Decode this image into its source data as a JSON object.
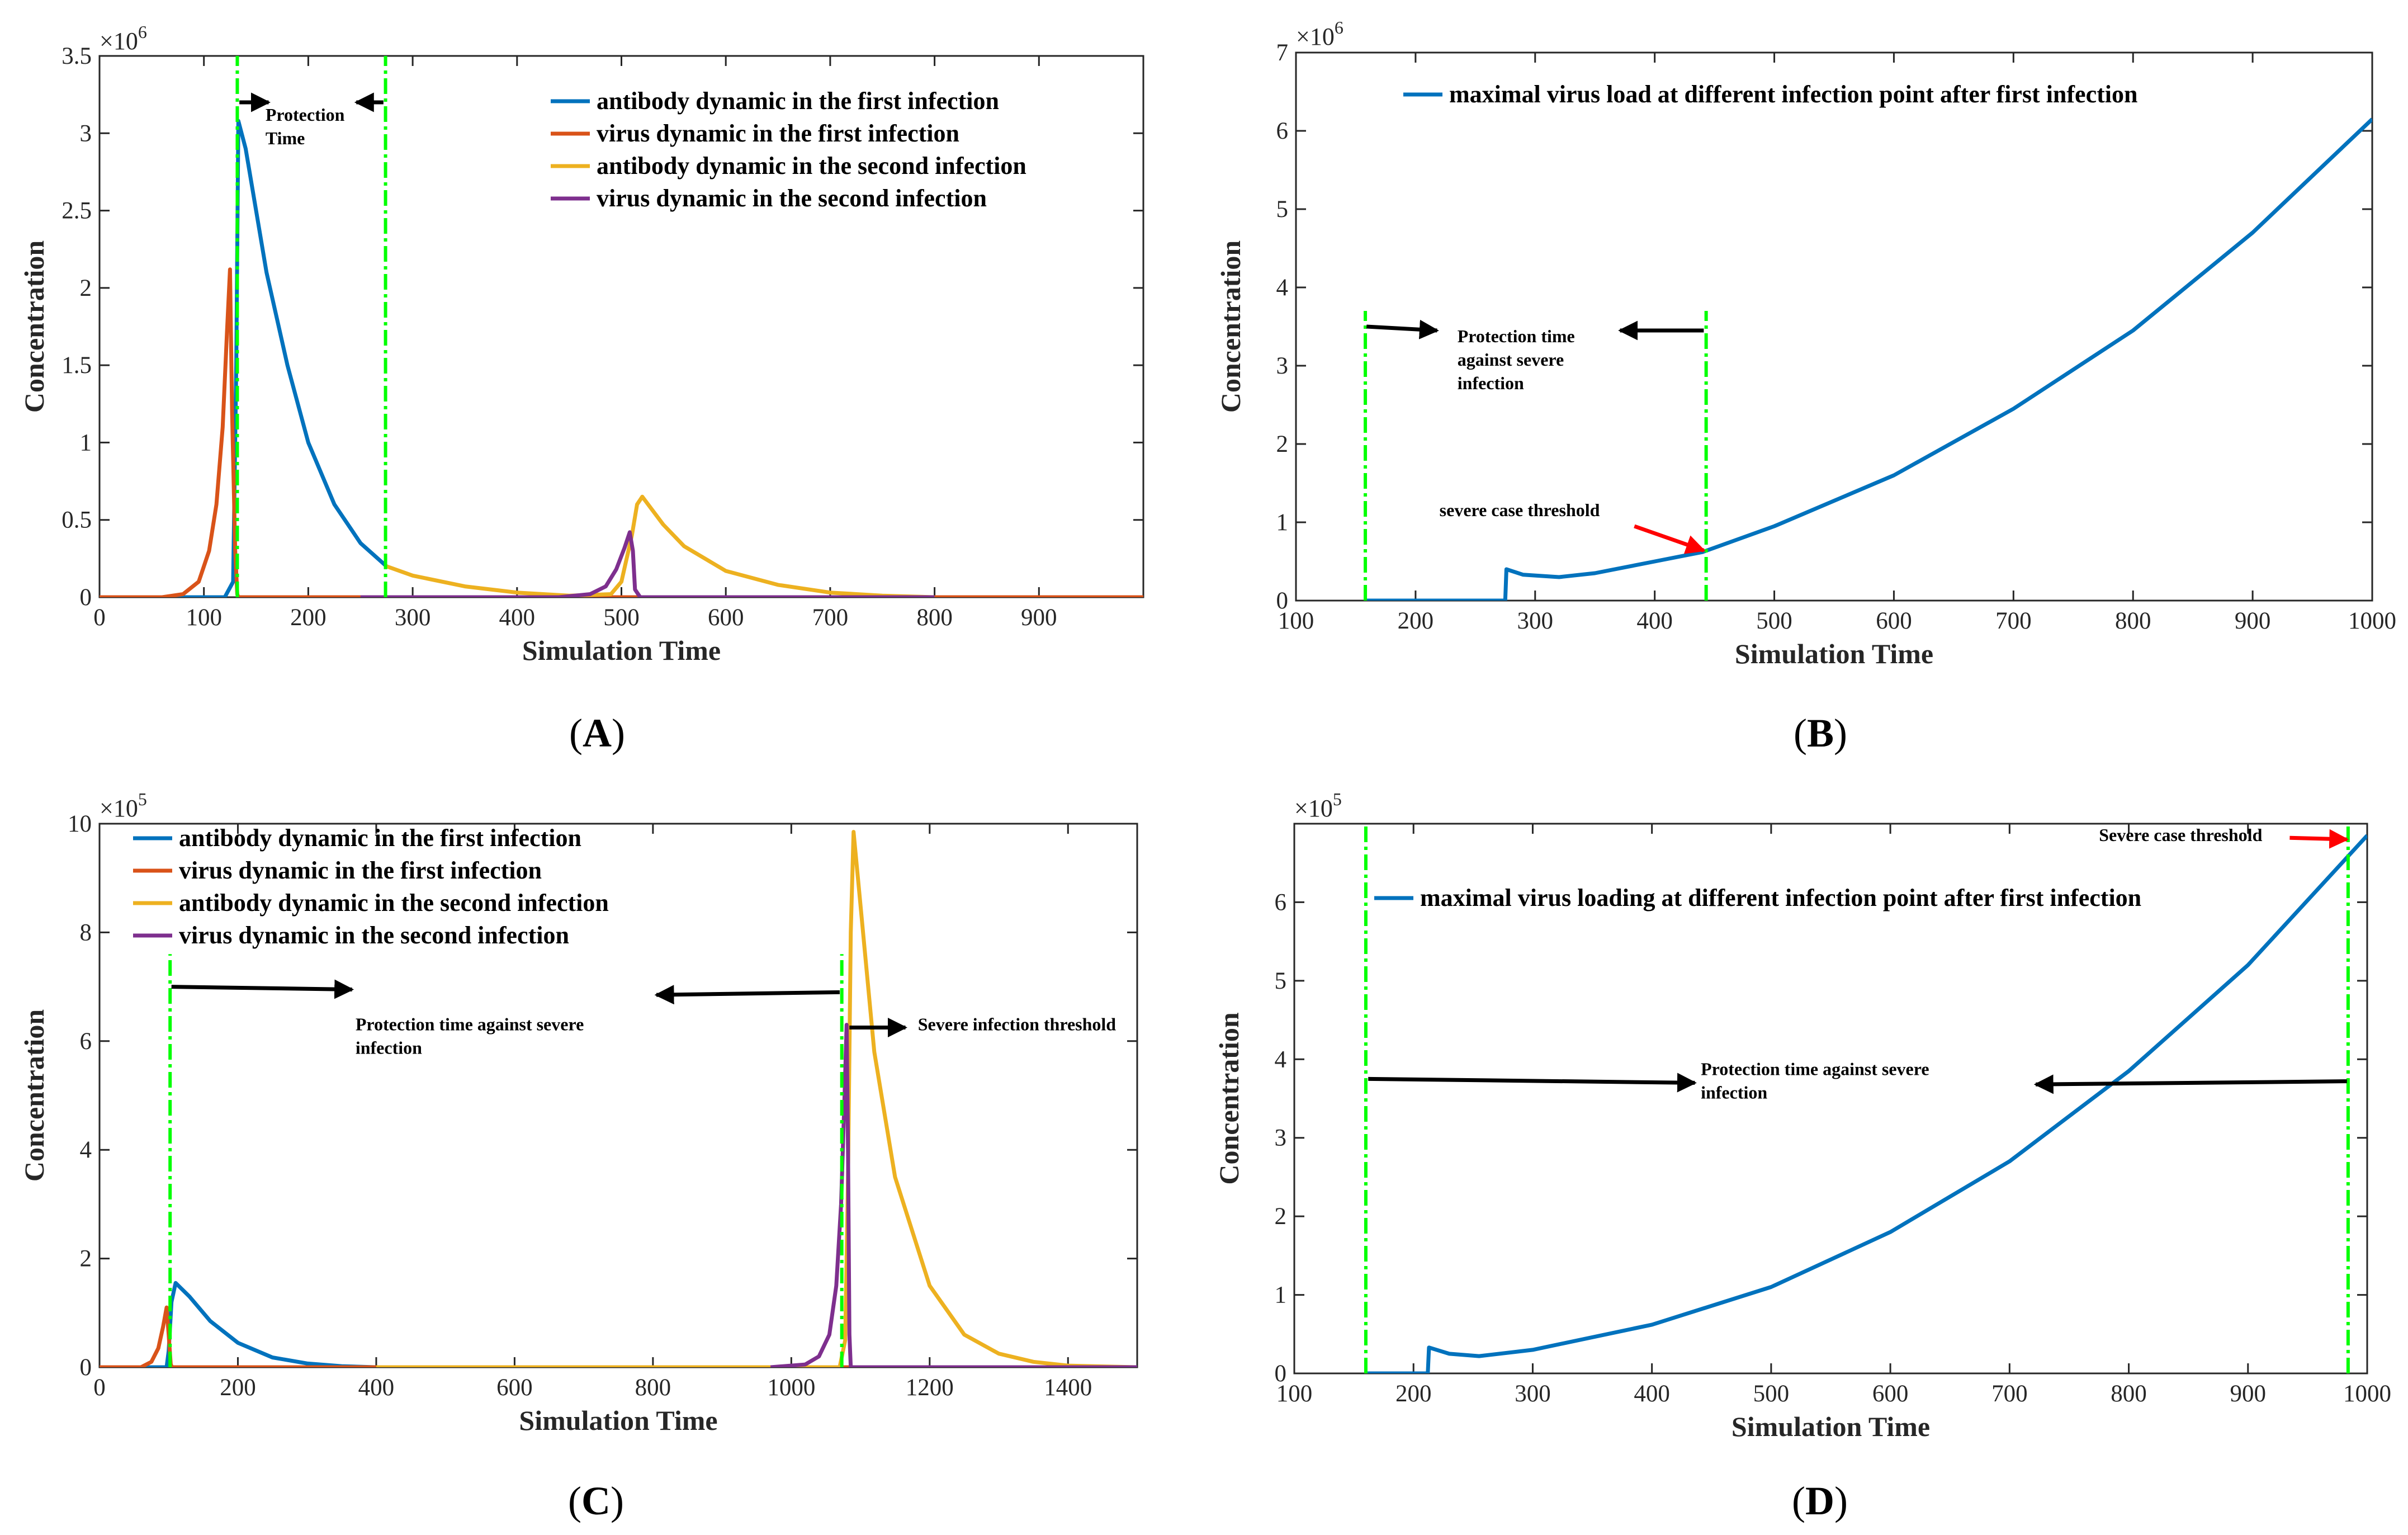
{
  "figure": {
    "colors": {
      "antibody_first": "#0072bd",
      "virus_first": "#d95319",
      "antibody_second": "#edb120",
      "virus_second": "#7e2f8e",
      "marker": "#00ff00",
      "arrow_black": "#000000",
      "arrow_red": "#ff0000"
    }
  },
  "chart_data": [
    {
      "panel": "A",
      "panel_label": "A",
      "type": "line",
      "xlabel": "Simulation Time",
      "ylabel": "Concentration",
      "exponent_label": "×10^6",
      "exponent_base": "×10",
      "exponent_power": "6",
      "xlim": [
        0,
        1000
      ],
      "ylim": [
        0,
        3.5
      ],
      "xticks": [
        0,
        100,
        200,
        300,
        400,
        500,
        600,
        700,
        800,
        900
      ],
      "xtick_labels": [
        "0",
        "100",
        "200",
        "300",
        "400",
        "500",
        "600",
        "700",
        "800",
        "900"
      ],
      "yticks": [
        0,
        0.5,
        1,
        1.5,
        2,
        2.5,
        3,
        3.5
      ],
      "ytick_labels": [
        "0",
        "0.5",
        "1",
        "1.5",
        "2",
        "2.5",
        "3",
        "3.5"
      ],
      "legend": [
        "antibody dynamic in the first infection",
        "virus dynamic in the first infection",
        "antibody dynamic in the second infection",
        "virus dynamic in the second infection"
      ],
      "legend_position": "top-right",
      "series": [
        {
          "name": "antibody dynamic in the first infection",
          "color": "#0072bd",
          "x": [
            0,
            120,
            128,
            131,
            133,
            140,
            160,
            180,
            200,
            225,
            250,
            275
          ],
          "y": [
            0,
            0,
            0.1,
            1.5,
            3.08,
            2.9,
            2.1,
            1.5,
            1.0,
            0.6,
            0.35,
            0.2
          ]
        },
        {
          "name": "virus dynamic in the first infection",
          "color": "#d95319",
          "x": [
            0,
            60,
            80,
            95,
            105,
            112,
            118,
            122,
            125,
            127,
            130,
            132,
            133,
            135,
            1000
          ],
          "y": [
            0,
            0,
            0.02,
            0.1,
            0.3,
            0.6,
            1.1,
            1.7,
            2.12,
            1.2,
            0.3,
            0.02,
            0,
            0,
            0
          ]
        },
        {
          "name": "antibody dynamic in the second infection",
          "color": "#edb120",
          "x": [
            275,
            300,
            350,
            400,
            450,
            490,
            500,
            510,
            515,
            520,
            540,
            560,
            600,
            650,
            700,
            750,
            800
          ],
          "y": [
            0.2,
            0.14,
            0.07,
            0.03,
            0.01,
            0.02,
            0.1,
            0.4,
            0.6,
            0.65,
            0.47,
            0.33,
            0.17,
            0.08,
            0.03,
            0.01,
            0
          ]
        },
        {
          "name": "virus dynamic in the second infection",
          "color": "#7e2f8e",
          "x": [
            250,
            440,
            470,
            485,
            495,
            503,
            508,
            511,
            513,
            518,
            800
          ],
          "y": [
            0,
            0,
            0.02,
            0.07,
            0.18,
            0.32,
            0.42,
            0.3,
            0.05,
            0,
            0
          ]
        }
      ],
      "markers": [
        {
          "x": 132,
          "y_range": [
            0,
            3.5
          ],
          "color": "#00ff00"
        },
        {
          "x": 274,
          "y_range": [
            0,
            3.5
          ],
          "color": "#00ff00"
        }
      ],
      "annotations": [
        {
          "lines": [
            "Protection",
            "Time"
          ],
          "x": 159,
          "y": 3.08
        },
        {
          "arrow": {
            "from": [
              134,
              3.2
            ],
            "to": [
              162,
              3.2
            ],
            "color": "#000000"
          }
        },
        {
          "arrow": {
            "from": [
              272,
              3.2
            ],
            "to": [
              246,
              3.2
            ],
            "color": "#000000"
          }
        }
      ]
    },
    {
      "panel": "B",
      "panel_label": "B",
      "type": "line",
      "xlabel": "Simulation Time",
      "ylabel": "Concentration",
      "exponent_label": "×10^6",
      "exponent_base": "×10",
      "exponent_power": "6",
      "xlim": [
        100,
        1000
      ],
      "ylim": [
        0,
        7
      ],
      "xticks": [
        100,
        200,
        300,
        400,
        500,
        600,
        700,
        800,
        900,
        1000
      ],
      "xtick_labels": [
        "100",
        "200",
        "300",
        "400",
        "500",
        "600",
        "700",
        "800",
        "900",
        "1000"
      ],
      "yticks": [
        0,
        1,
        2,
        3,
        4,
        5,
        6,
        7
      ],
      "ytick_labels": [
        "0",
        "1",
        "2",
        "3",
        "4",
        "5",
        "6",
        "7"
      ],
      "legend": [
        "maximal virus load at different infection point after first infection"
      ],
      "legend_position": "top",
      "series": [
        {
          "name": "maximal virus load at different infection point after first infection",
          "color": "#0072bd",
          "x": [
            158,
            275,
            276,
            290,
            320,
            350,
            400,
            440,
            500,
            600,
            700,
            800,
            900,
            1000
          ],
          "y": [
            0,
            0,
            0.4,
            0.33,
            0.3,
            0.35,
            0.5,
            0.62,
            0.95,
            1.6,
            2.45,
            3.45,
            4.7,
            6.15
          ]
        }
      ],
      "markers": [
        {
          "x": 158,
          "y_range": [
            0,
            3.7
          ],
          "color": "#00ff00"
        },
        {
          "x": 443,
          "y_range": [
            0,
            3.7
          ],
          "color": "#00ff00"
        }
      ],
      "annotations": [
        {
          "lines": [
            "Protection time",
            "against severe",
            "infection"
          ],
          "x": 235,
          "y": 3.3
        },
        {
          "lines": [
            "severe case threshold"
          ],
          "x": 220,
          "y": 1.08
        },
        {
          "arrow": {
            "from": [
              159,
              3.5
            ],
            "to": [
              218,
              3.45
            ],
            "color": "#000000"
          }
        },
        {
          "arrow": {
            "from": [
              441,
              3.45
            ],
            "to": [
              371,
              3.45
            ],
            "color": "#000000"
          }
        },
        {
          "arrow": {
            "from": [
              383,
              0.95
            ],
            "to": [
              441,
              0.64
            ],
            "color": "#ff0000"
          }
        }
      ]
    },
    {
      "panel": "C",
      "panel_label": "C",
      "type": "line",
      "xlabel": "Simulation Time",
      "ylabel": "Concentration",
      "exponent_label": "×10^5",
      "exponent_base": "×10",
      "exponent_power": "5",
      "xlim": [
        0,
        1500
      ],
      "ylim": [
        0,
        10
      ],
      "xticks": [
        0,
        200,
        400,
        600,
        800,
        1000,
        1200,
        1400
      ],
      "xtick_labels": [
        "0",
        "200",
        "400",
        "600",
        "800",
        "1000",
        "1200",
        "1400"
      ],
      "yticks": [
        0,
        2,
        4,
        6,
        8,
        10
      ],
      "ytick_labels": [
        "0",
        "2",
        "4",
        "6",
        "8",
        "10"
      ],
      "legend": [
        "antibody dynamic in the first infection",
        "virus dynamic in the first infection",
        "antibody dynamic in the second infection",
        "virus dynamic in the second infection"
      ],
      "legend_position": "top-left",
      "series": [
        {
          "name": "antibody dynamic in the first infection",
          "color": "#0072bd",
          "x": [
            0,
            97,
            100,
            104,
            110,
            130,
            160,
            200,
            250,
            300,
            350,
            400
          ],
          "y": [
            0,
            0,
            0.3,
            1.2,
            1.55,
            1.3,
            0.85,
            0.45,
            0.18,
            0.07,
            0.02,
            0
          ]
        },
        {
          "name": "virus dynamic in the first infection",
          "color": "#d95319",
          "x": [
            0,
            60,
            75,
            85,
            92,
            97,
            100,
            103,
            105,
            1500
          ],
          "y": [
            0,
            0,
            0.1,
            0.35,
            0.75,
            1.1,
            0.6,
            0.05,
            0,
            0
          ]
        },
        {
          "name": "antibody dynamic in the second infection",
          "color": "#edb120",
          "x": [
            400,
            1050,
            1070,
            1078,
            1082,
            1086,
            1090,
            1100,
            1120,
            1150,
            1200,
            1250,
            1300,
            1350,
            1400,
            1500
          ],
          "y": [
            0,
            0,
            0,
            0.5,
            3.5,
            8.0,
            9.85,
            8.5,
            5.8,
            3.5,
            1.5,
            0.6,
            0.25,
            0.1,
            0.03,
            0
          ]
        },
        {
          "name": "virus dynamic in the second infection",
          "color": "#7e2f8e",
          "x": [
            970,
            1020,
            1040,
            1055,
            1065,
            1072,
            1077,
            1080,
            1082,
            1084,
            1086,
            1500
          ],
          "y": [
            0,
            0.05,
            0.2,
            0.6,
            1.5,
            3.0,
            5.0,
            6.3,
            4.0,
            0.6,
            0,
            0
          ]
        }
      ],
      "markers": [
        {
          "x": 102,
          "y_range": [
            0,
            7.6
          ],
          "color": "#00ff00"
        },
        {
          "x": 1073,
          "y_range": [
            0,
            7.6
          ],
          "color": "#00ff00"
        }
      ],
      "annotations": [
        {
          "lines": [
            "Protection time against severe",
            "infection"
          ],
          "x": 370,
          "y": 6.2
        },
        {
          "lines": [
            "Severe infection threshold"
          ],
          "x": 1183,
          "y": 6.2
        },
        {
          "arrow": {
            "from": [
              104,
              7.0
            ],
            "to": [
              365,
              6.95
            ],
            "color": "#000000"
          }
        },
        {
          "arrow": {
            "from": [
              1070,
              6.9
            ],
            "to": [
              805,
              6.85
            ],
            "color": "#000000"
          }
        },
        {
          "arrow": {
            "from": [
              1084,
              6.25
            ],
            "to": [
              1165,
              6.25
            ],
            "color": "#000000"
          }
        }
      ]
    },
    {
      "panel": "D",
      "panel_label": "D",
      "type": "line",
      "xlabel": "Simulation Time",
      "ylabel": "Concentration",
      "exponent_label": "×10^5",
      "exponent_base": "×10",
      "exponent_power": "5",
      "xlim": [
        100,
        1000
      ],
      "ylim": [
        0,
        7
      ],
      "xticks": [
        100,
        200,
        300,
        400,
        500,
        600,
        700,
        800,
        900,
        1000
      ],
      "xtick_labels": [
        "100",
        "200",
        "300",
        "400",
        "500",
        "600",
        "700",
        "800",
        "900",
        "1000"
      ],
      "yticks": [
        0,
        1,
        2,
        3,
        4,
        5,
        6
      ],
      "ytick_labels": [
        "0",
        "1",
        "2",
        "3",
        "4",
        "5",
        "6"
      ],
      "legend": [
        "maximal virus loading at different infection point after first infection"
      ],
      "legend_position": "top",
      "series": [
        {
          "name": "maximal virus loading at different infection point after first infection",
          "color": "#0072bd",
          "x": [
            160,
            212,
            213,
            230,
            255,
            300,
            400,
            500,
            600,
            700,
            800,
            900,
            1000
          ],
          "y": [
            0,
            0,
            0.33,
            0.25,
            0.22,
            0.3,
            0.62,
            1.1,
            1.8,
            2.7,
            3.85,
            5.2,
            6.85
          ]
        }
      ],
      "markers": [
        {
          "x": 160,
          "y_range": [
            0,
            7
          ],
          "color": "#00ff00"
        },
        {
          "x": 984,
          "y_range": [
            0,
            7
          ],
          "color": "#00ff00"
        }
      ],
      "annotations": [
        {
          "lines": [
            "Protection time against severe",
            "infection"
          ],
          "x": 441,
          "y": 3.8
        },
        {
          "lines": [
            "Severe case threshold"
          ],
          "x": 775,
          "y": 6.78
        },
        {
          "arrow": {
            "from": [
              162,
              3.75
            ],
            "to": [
              436,
              3.7
            ],
            "color": "#000000"
          }
        },
        {
          "arrow": {
            "from": [
              983,
              3.72
            ],
            "to": [
              722,
              3.68
            ],
            "color": "#000000"
          }
        },
        {
          "arrow": {
            "from": [
              935,
              6.82
            ],
            "to": [
              983,
              6.8
            ],
            "color": "#ff0000"
          }
        }
      ]
    }
  ]
}
